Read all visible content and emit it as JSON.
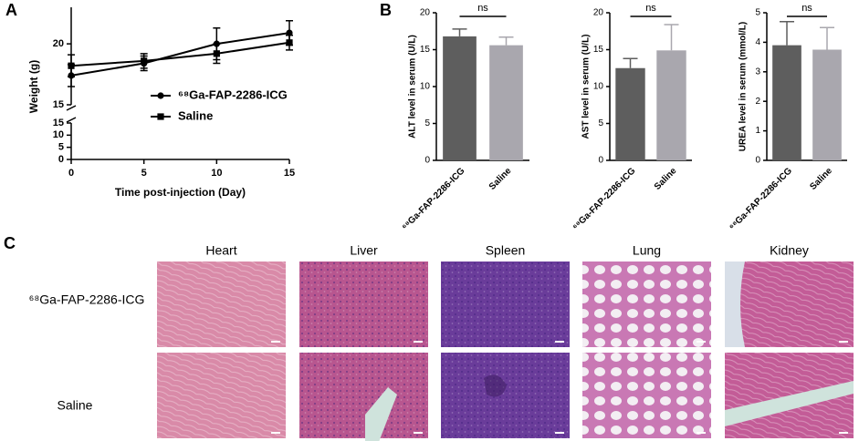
{
  "panel_labels": [
    "A",
    "B",
    "C"
  ],
  "chart_data": [
    {
      "type": "line",
      "xlabel": "Time post-injection (Day)",
      "ylabel": "Weight (g)",
      "x": [
        0,
        5,
        10,
        15
      ],
      "xlim": [
        0,
        15
      ],
      "xticks": [
        0,
        5,
        10,
        15
      ],
      "ylim": [
        15,
        23
      ],
      "yticks": [
        15,
        20
      ],
      "ylim_lower": [
        0,
        15
      ],
      "yticks_lower": [
        0,
        5,
        10,
        15
      ],
      "legend": "center right",
      "series": [
        {
          "name": "⁶⁸Ga-FAP-2286-ICG",
          "color": "#000000",
          "marker": "circle",
          "values": [
            17.4,
            18.4,
            20.0,
            20.9
          ],
          "errors": [
            0.9,
            0.6,
            1.3,
            1.0
          ]
        },
        {
          "name": "Saline",
          "color": "#000000",
          "marker": "square",
          "values": [
            18.2,
            18.6,
            19.2,
            20.1
          ],
          "errors": [
            0.9,
            0.6,
            0.8,
            0.6
          ]
        }
      ]
    },
    {
      "type": "bar",
      "ylabel": "ALT level in serum (U/L)",
      "categories": [
        "⁶⁸Ga-FAP-2286-ICG",
        "Saline"
      ],
      "values": [
        16.8,
        15.6
      ],
      "errors": [
        1.0,
        1.1
      ],
      "colors": [
        "#5e5e5e",
        "#a9a7ae"
      ],
      "ylim": [
        0,
        20
      ],
      "yticks": [
        0,
        5,
        10,
        15,
        20
      ],
      "annotation": "ns"
    },
    {
      "type": "bar",
      "ylabel": "AST level in serum (U/L)",
      "categories": [
        "⁶⁸Ga-FAP-2286-ICG",
        "Saline"
      ],
      "values": [
        12.5,
        14.9
      ],
      "errors": [
        1.3,
        3.5
      ],
      "colors": [
        "#5e5e5e",
        "#a9a7ae"
      ],
      "ylim": [
        0,
        20
      ],
      "yticks": [
        0,
        5,
        10,
        15,
        20
      ],
      "annotation": "ns"
    },
    {
      "type": "bar",
      "ylabel": "UREA level in serum (mmol/L)",
      "categories": [
        "⁶⁸Ga-FAP-2286-ICG",
        "Saline"
      ],
      "values": [
        3.9,
        3.75
      ],
      "errors": [
        0.8,
        0.75
      ],
      "colors": [
        "#5e5e5e",
        "#a9a7ae"
      ],
      "ylim": [
        0,
        5
      ],
      "yticks": [
        0,
        1,
        2,
        3,
        4,
        5
      ],
      "annotation": "ns"
    }
  ],
  "histology": {
    "columns": [
      "Heart",
      "Liver",
      "Spleen",
      "Lung",
      "Kidney"
    ],
    "rows": [
      "⁶⁸Ga-FAP-2286-ICG",
      "Saline"
    ]
  }
}
